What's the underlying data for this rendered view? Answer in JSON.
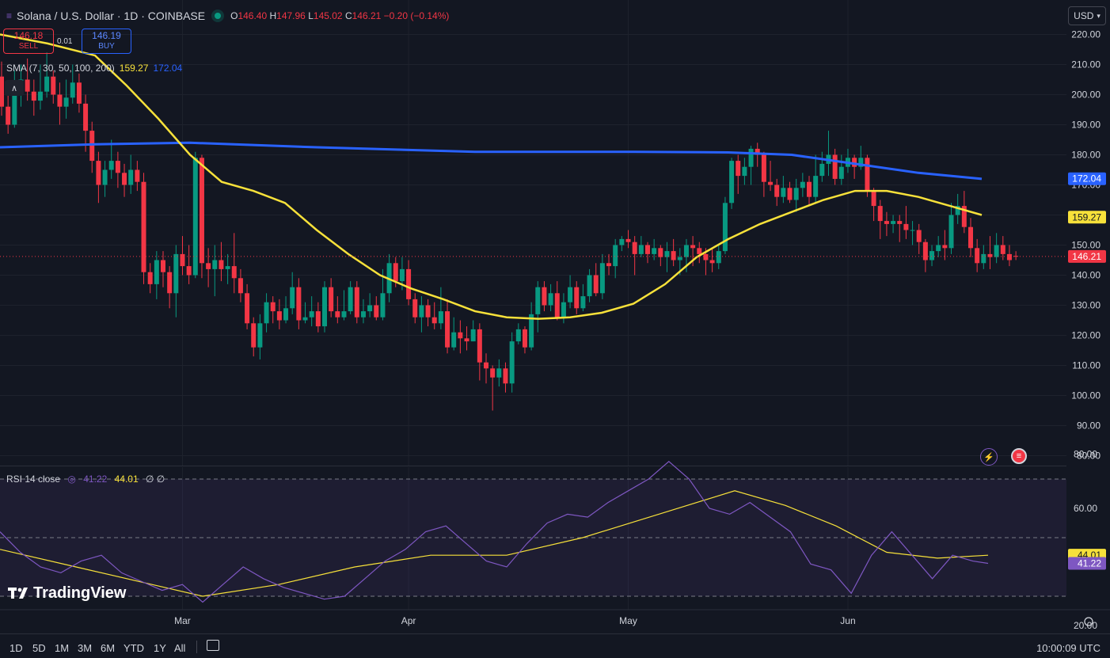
{
  "header": {
    "symbol": "Solana / U.S. Dollar · 1D · COINBASE",
    "o_label": "O",
    "o": "146.40",
    "h_label": "H",
    "h": "147.96",
    "l_label": "L",
    "l": "145.02",
    "c_label": "C",
    "c": "146.21",
    "change": "−0.20 (−0.14%)"
  },
  "trade": {
    "sell_price": "146.18",
    "sell_label": "SELL",
    "spread": "0.01",
    "buy_price": "146.19",
    "buy_label": "BUY"
  },
  "sma_legend": {
    "label": "SMA (7, 30, 50, 100, 200)",
    "v1": "159.27",
    "v2": "172.04"
  },
  "rsi_legend": {
    "label": "RSI 14 close",
    "v1": "41.22",
    "v2": "44.01",
    "v3": "∅ ∅"
  },
  "currency": "USD",
  "logo": "TradingView",
  "time_ranges": [
    "1D",
    "5D",
    "1M",
    "3M",
    "6M",
    "YTD",
    "1Y",
    "All"
  ],
  "clock": "10:00:09 UTC",
  "colors": {
    "up": "#089981",
    "down": "#f23645",
    "sma_fast": "#f7e13a",
    "sma_slow": "#2962ff",
    "rsi": "#7e57c2",
    "rsi_ma": "#f7e13a"
  },
  "chart_data": [
    {
      "type": "candlestick",
      "title": "Solana / U.S. Dollar · 1D · COINBASE",
      "x_ticks": [
        "Mar",
        "Apr",
        "May",
        "Jun"
      ],
      "y_ticks": [
        "80.00",
        "90.00",
        "100.00",
        "110.00",
        "120.00",
        "130.00",
        "140.00",
        "150.00",
        "160.00",
        "170.00",
        "180.00",
        "190.00",
        "200.00",
        "210.00",
        "220.00"
      ],
      "ylim": [
        80,
        222
      ],
      "current_price": "146.21",
      "candles": [
        [
          206,
          196,
          211,
          193
        ],
        [
          196,
          190,
          200,
          187
        ],
        [
          190,
          200,
          208,
          189
        ],
        [
          200,
          205,
          210,
          196
        ],
        [
          205,
          201,
          212,
          198
        ],
        [
          201,
          198,
          205,
          193
        ],
        [
          198,
          201,
          210,
          195
        ],
        [
          201,
          206,
          214,
          199
        ],
        [
          206,
          200,
          208,
          197
        ],
        [
          200,
          196,
          204,
          190
        ],
        [
          196,
          199,
          205,
          192
        ],
        [
          199,
          204,
          210,
          197
        ],
        [
          204,
          197,
          207,
          194
        ],
        [
          197,
          188,
          200,
          181
        ],
        [
          188,
          178,
          191,
          174
        ],
        [
          178,
          170,
          181,
          164
        ],
        [
          170,
          175,
          178,
          166
        ],
        [
          175,
          178,
          185,
          172
        ],
        [
          178,
          174,
          181,
          169
        ],
        [
          174,
          170,
          177,
          166
        ],
        [
          170,
          175,
          180,
          167
        ],
        [
          175,
          171,
          178,
          168
        ],
        [
          171,
          141,
          174,
          137
        ],
        [
          141,
          137,
          144,
          134
        ],
        [
          137,
          145,
          148,
          132
        ],
        [
          145,
          141,
          148,
          136
        ],
        [
          141,
          134,
          143,
          129
        ],
        [
          134,
          147,
          150,
          126
        ],
        [
          147,
          143,
          153,
          140
        ],
        [
          143,
          140,
          150,
          137
        ],
        [
          140,
          179,
          181,
          139
        ],
        [
          179,
          144,
          180,
          139
        ],
        [
          144,
          142,
          149,
          136
        ],
        [
          142,
          145,
          150,
          133
        ],
        [
          145,
          142,
          151,
          138
        ],
        [
          142,
          143,
          147,
          137
        ],
        [
          143,
          139,
          154,
          134
        ],
        [
          139,
          134,
          142,
          131
        ],
        [
          134,
          124,
          137,
          122
        ],
        [
          124,
          116,
          126,
          113
        ],
        [
          116,
          124,
          127,
          112
        ],
        [
          124,
          131,
          134,
          121
        ],
        [
          131,
          128,
          133,
          124
        ],
        [
          128,
          125,
          132,
          122
        ],
        [
          125,
          129,
          133,
          124
        ],
        [
          129,
          136,
          141,
          127
        ],
        [
          136,
          125,
          139,
          122
        ],
        [
          125,
          126,
          131,
          124
        ],
        [
          126,
          128,
          133,
          123
        ],
        [
          128,
          123,
          131,
          121
        ],
        [
          123,
          136,
          138,
          121
        ],
        [
          136,
          128,
          139,
          126
        ],
        [
          128,
          126,
          133,
          124
        ],
        [
          126,
          128,
          135,
          125
        ],
        [
          128,
          136,
          138,
          127
        ],
        [
          136,
          126,
          138,
          124
        ],
        [
          126,
          128,
          132,
          124
        ],
        [
          128,
          130,
          134,
          126
        ],
        [
          130,
          126,
          133,
          125
        ],
        [
          126,
          134,
          142,
          125
        ],
        [
          134,
          144,
          147,
          131
        ],
        [
          144,
          138,
          146,
          136
        ],
        [
          138,
          142,
          146,
          135
        ],
        [
          142,
          132,
          145,
          130
        ],
        [
          132,
          126,
          134,
          124
        ],
        [
          126,
          130,
          133,
          121
        ],
        [
          130,
          126,
          132,
          123
        ],
        [
          126,
          124,
          131,
          122
        ],
        [
          124,
          128,
          136,
          122
        ],
        [
          128,
          116,
          132,
          114
        ],
        [
          116,
          121,
          126,
          115
        ],
        [
          121,
          119,
          125,
          114
        ],
        [
          119,
          118,
          123,
          115
        ],
        [
          118,
          122,
          125,
          118
        ],
        [
          122,
          111,
          124,
          105
        ],
        [
          111,
          109,
          114,
          104
        ],
        [
          109,
          106,
          110,
          95
        ],
        [
          106,
          109,
          112,
          103
        ],
        [
          109,
          104,
          111,
          101
        ],
        [
          104,
          118,
          121,
          101
        ],
        [
          118,
          122,
          124,
          117
        ],
        [
          122,
          116,
          123,
          114
        ],
        [
          116,
          127,
          131,
          115
        ],
        [
          127,
          136,
          138,
          121
        ],
        [
          136,
          130,
          138,
          128
        ],
        [
          130,
          134,
          137,
          128
        ],
        [
          134,
          126,
          138,
          125
        ],
        [
          126,
          131,
          134,
          124
        ],
        [
          131,
          136,
          140,
          129
        ],
        [
          136,
          129,
          138,
          127
        ],
        [
          129,
          133,
          137,
          128
        ],
        [
          133,
          140,
          142,
          131
        ],
        [
          140,
          134,
          144,
          133
        ],
        [
          134,
          144,
          147,
          132
        ],
        [
          144,
          143,
          147,
          140
        ],
        [
          143,
          150,
          152,
          139
        ],
        [
          150,
          152,
          153,
          148
        ],
        [
          152,
          151,
          155,
          149
        ],
        [
          151,
          147,
          153,
          140
        ],
        [
          147,
          150,
          153,
          146
        ],
        [
          150,
          147,
          151,
          144
        ],
        [
          147,
          149,
          152,
          145
        ],
        [
          149,
          146,
          150,
          143
        ],
        [
          146,
          148,
          151,
          141
        ],
        [
          148,
          145,
          152,
          143
        ],
        [
          145,
          146,
          149,
          140
        ],
        [
          146,
          150,
          152,
          141
        ],
        [
          150,
          149,
          153,
          143
        ],
        [
          149,
          147,
          151,
          144
        ],
        [
          147,
          145,
          149,
          140
        ],
        [
          145,
          144,
          149,
          141
        ],
        [
          144,
          148,
          150,
          142
        ],
        [
          148,
          164,
          166,
          147
        ],
        [
          164,
          178,
          179,
          162
        ],
        [
          178,
          173,
          180,
          167
        ],
        [
          173,
          176,
          179,
          170
        ],
        [
          176,
          182,
          183,
          170
        ],
        [
          182,
          180,
          184,
          176
        ],
        [
          180,
          171,
          181,
          166
        ],
        [
          171,
          170,
          178,
          168
        ],
        [
          170,
          166,
          172,
          163
        ],
        [
          166,
          169,
          173,
          164
        ],
        [
          169,
          165,
          171,
          164
        ],
        [
          165,
          169,
          172,
          161
        ],
        [
          169,
          171,
          174,
          166
        ],
        [
          171,
          166,
          173,
          163
        ],
        [
          166,
          173,
          180,
          164
        ],
        [
          173,
          177,
          181,
          171
        ],
        [
          177,
          180,
          188,
          173
        ],
        [
          180,
          172,
          182,
          170
        ],
        [
          172,
          176,
          180,
          170
        ],
        [
          176,
          179,
          182,
          174
        ],
        [
          179,
          176,
          180,
          172
        ],
        [
          176,
          179,
          183,
          175
        ],
        [
          179,
          168,
          180,
          166
        ],
        [
          168,
          163,
          169,
          158
        ],
        [
          163,
          158,
          165,
          152
        ],
        [
          158,
          157,
          161,
          153
        ],
        [
          157,
          158,
          160,
          154
        ],
        [
          158,
          157,
          160,
          151
        ],
        [
          157,
          155,
          163,
          152
        ],
        [
          155,
          155,
          158,
          150
        ],
        [
          155,
          151,
          157,
          147
        ],
        [
          151,
          145,
          152,
          141
        ],
        [
          145,
          148,
          150,
          143
        ],
        [
          148,
          150,
          153,
          146
        ],
        [
          150,
          149,
          155,
          145
        ],
        [
          149,
          160,
          164,
          147
        ],
        [
          160,
          163,
          167,
          157
        ],
        [
          163,
          156,
          168,
          154
        ],
        [
          156,
          149,
          159,
          146
        ],
        [
          149,
          144,
          152,
          141
        ],
        [
          144,
          147,
          150,
          142
        ],
        [
          147,
          146,
          153,
          142
        ],
        [
          146,
          150,
          154,
          144
        ],
        [
          150,
          147,
          153,
          145
        ],
        [
          147,
          145,
          150,
          143
        ],
        [
          146.4,
          146.21,
          147.96,
          145.02
        ]
      ],
      "sma_fast": [
        [
          0,
          220
        ],
        [
          15,
          217
        ],
        [
          30,
          213
        ],
        [
          40,
          203
        ],
        [
          50,
          192
        ],
        [
          60,
          180
        ],
        [
          70,
          171
        ],
        [
          80,
          168
        ],
        [
          90,
          164
        ],
        [
          100,
          155
        ],
        [
          110,
          147
        ],
        [
          120,
          140
        ],
        [
          130,
          135.5
        ],
        [
          140,
          132
        ],
        [
          150,
          128
        ],
        [
          160,
          126
        ],
        [
          170,
          125.5
        ],
        [
          180,
          126
        ],
        [
          190,
          127.5
        ],
        [
          200,
          130.5
        ],
        [
          210,
          137
        ],
        [
          220,
          146
        ],
        [
          230,
          152
        ],
        [
          240,
          157
        ],
        [
          250,
          161
        ],
        [
          260,
          165
        ],
        [
          270,
          168
        ],
        [
          280,
          168
        ],
        [
          290,
          166
        ],
        [
          300,
          163
        ],
        [
          310,
          160
        ]
      ],
      "sma_slow": [
        [
          0,
          182.5
        ],
        [
          30,
          183.5
        ],
        [
          60,
          184
        ],
        [
          100,
          182.5
        ],
        [
          150,
          181
        ],
        [
          200,
          181
        ],
        [
          230,
          180.8
        ],
        [
          250,
          180
        ],
        [
          270,
          177
        ],
        [
          290,
          174
        ],
        [
          310,
          172
        ]
      ]
    },
    {
      "type": "line",
      "title": "RSI 14 close",
      "y_ticks": [
        "20.00",
        "60.00",
        "80.00"
      ],
      "ylim": [
        20,
        80
      ],
      "bands": [
        30,
        50,
        70
      ],
      "rsi": [
        [
          0,
          52
        ],
        [
          8,
          45
        ],
        [
          16,
          40
        ],
        [
          24,
          38
        ],
        [
          32,
          42
        ],
        [
          40,
          44
        ],
        [
          48,
          38
        ],
        [
          56,
          35
        ],
        [
          64,
          32
        ],
        [
          72,
          34
        ],
        [
          80,
          28
        ],
        [
          88,
          34
        ],
        [
          96,
          40
        ],
        [
          104,
          36
        ],
        [
          112,
          33
        ],
        [
          120,
          31
        ],
        [
          128,
          29
        ],
        [
          136,
          30
        ],
        [
          144,
          36
        ],
        [
          152,
          42
        ],
        [
          160,
          46
        ],
        [
          168,
          52
        ],
        [
          176,
          54
        ],
        [
          184,
          48
        ],
        [
          192,
          42
        ],
        [
          200,
          40
        ],
        [
          208,
          48
        ],
        [
          216,
          55
        ],
        [
          224,
          58
        ],
        [
          232,
          57
        ],
        [
          240,
          62
        ],
        [
          248,
          66
        ],
        [
          256,
          70
        ],
        [
          264,
          76
        ],
        [
          272,
          70
        ],
        [
          280,
          60
        ],
        [
          288,
          58
        ],
        [
          296,
          62
        ],
        [
          304,
          57
        ],
        [
          312,
          52
        ],
        [
          320,
          41
        ],
        [
          328,
          39
        ],
        [
          336,
          31
        ],
        [
          344,
          44
        ],
        [
          352,
          52
        ],
        [
          360,
          44
        ],
        [
          368,
          36
        ],
        [
          376,
          44
        ],
        [
          384,
          42
        ],
        [
          390,
          41.22
        ]
      ],
      "rsi_ma": [
        [
          0,
          46
        ],
        [
          30,
          40
        ],
        [
          60,
          34
        ],
        [
          80,
          30
        ],
        [
          110,
          34
        ],
        [
          140,
          40
        ],
        [
          170,
          44
        ],
        [
          200,
          44
        ],
        [
          230,
          50
        ],
        [
          260,
          58
        ],
        [
          290,
          66
        ],
        [
          310,
          61
        ],
        [
          330,
          54
        ],
        [
          350,
          45
        ],
        [
          370,
          43
        ],
        [
          390,
          44.01
        ]
      ]
    }
  ]
}
